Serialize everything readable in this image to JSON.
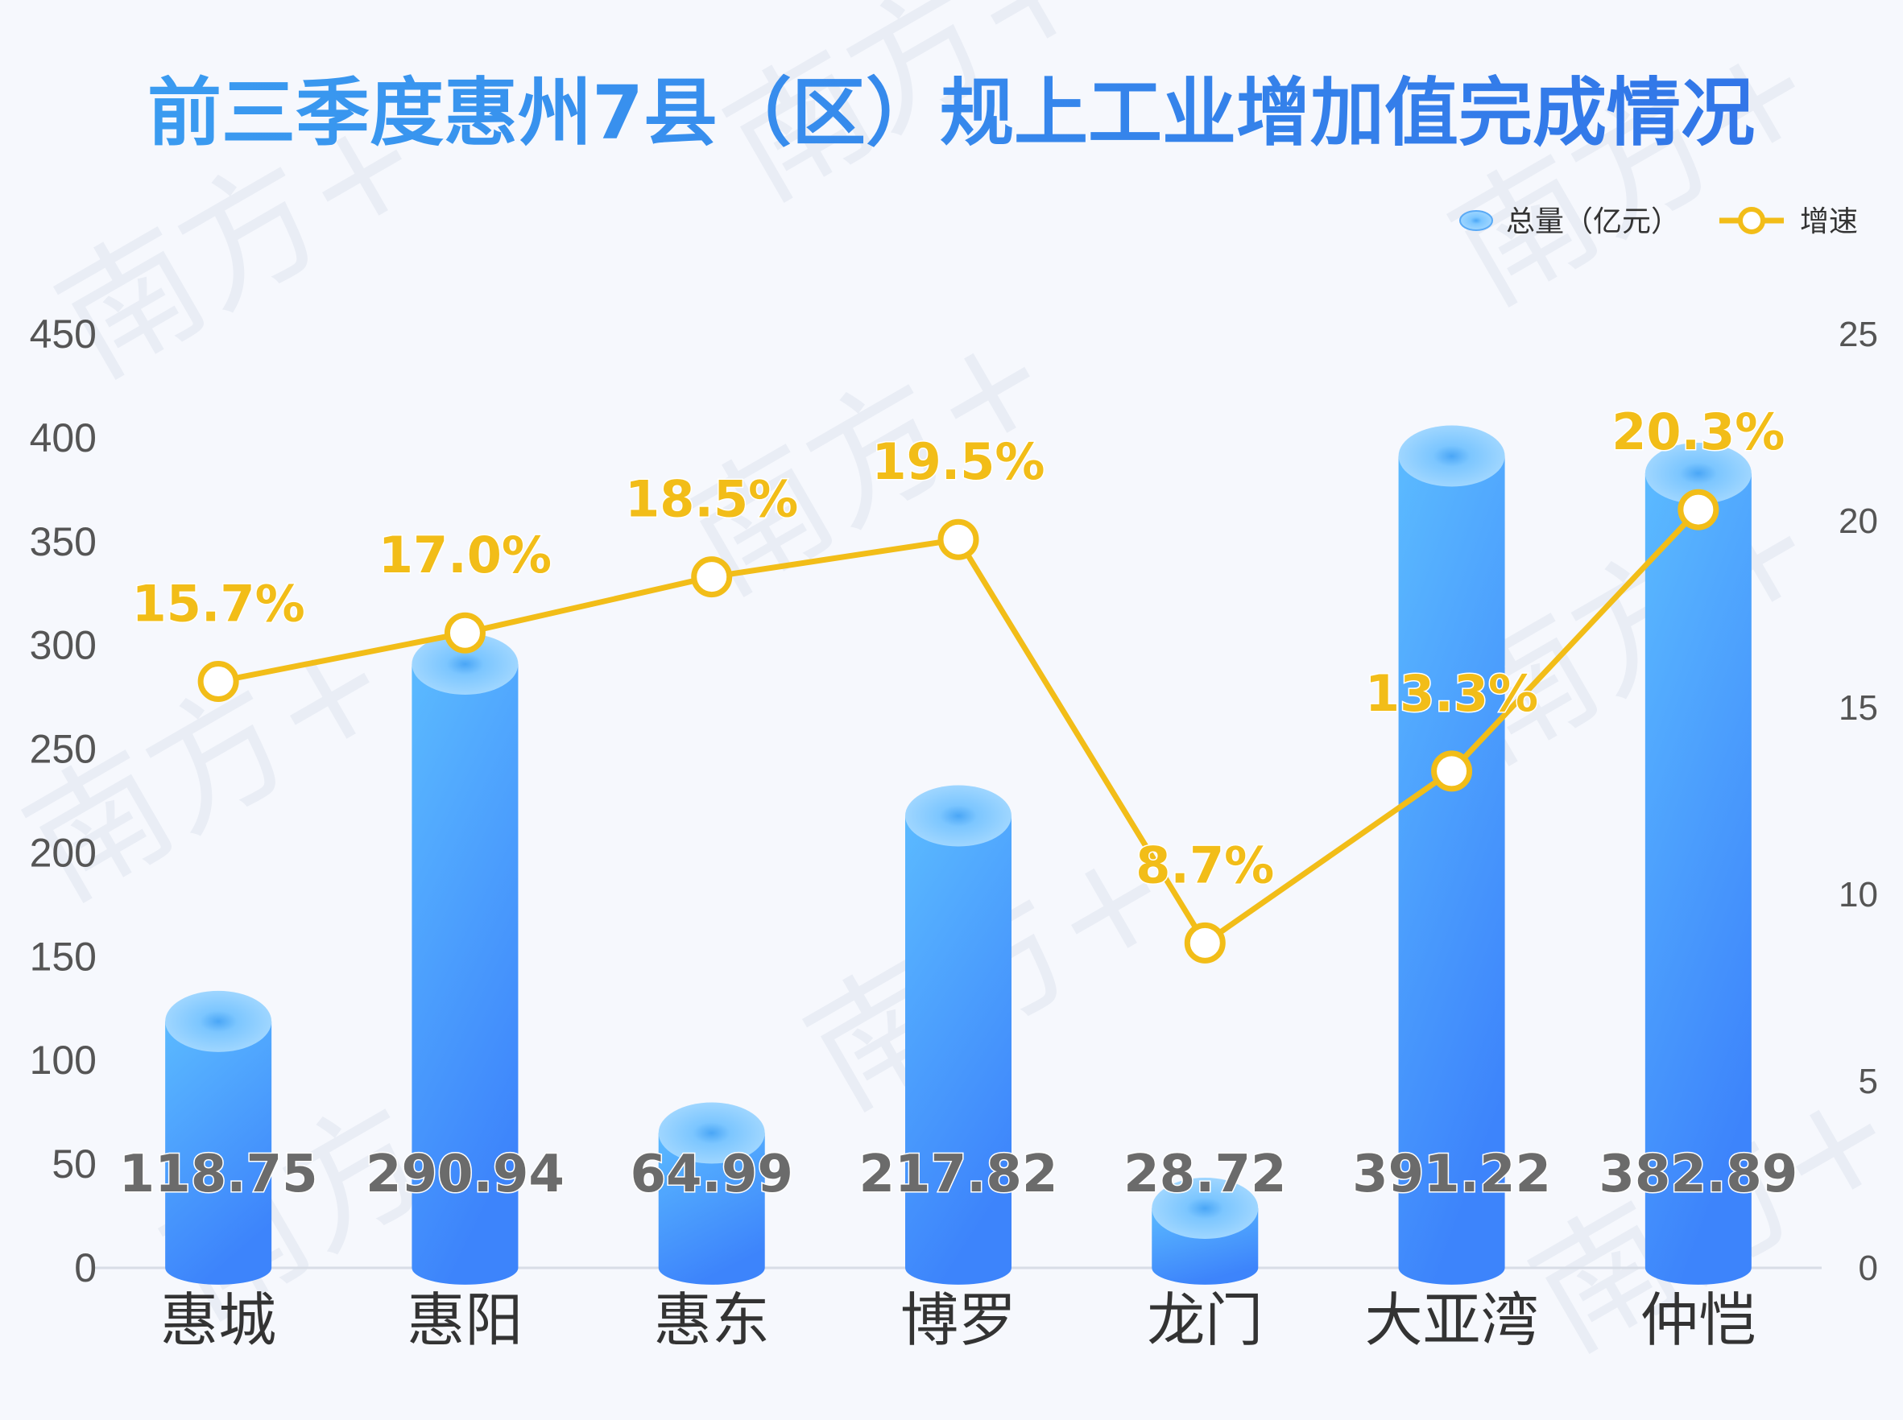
{
  "chart_data": {
    "type": "bar",
    "title": "前三季度惠州7县（区）规上工业增加值完成情况",
    "categories": [
      "惠城",
      "惠阳",
      "惠东",
      "博罗",
      "龙门",
      "大亚湾",
      "仲恺"
    ],
    "series": [
      {
        "name": "总量（亿元）",
        "type": "bar",
        "axis": "left",
        "values": [
          118.75,
          290.94,
          64.99,
          217.82,
          28.72,
          391.22,
          382.89
        ],
        "labels": [
          "118.75",
          "290.94",
          "64.99",
          "217.82",
          "28.72",
          "391.22",
          "382.89"
        ]
      },
      {
        "name": "增速",
        "type": "line",
        "axis": "right",
        "values": [
          15.7,
          17.0,
          18.5,
          19.5,
          8.7,
          13.3,
          20.3
        ],
        "labels": [
          "15.7%",
          "17.0%",
          "18.5%",
          "19.5%",
          "8.7%",
          "13.3%",
          "20.3%"
        ]
      }
    ],
    "y_left": {
      "min": 0,
      "max": 450,
      "ticks": [
        "0",
        "50",
        "100",
        "150",
        "200",
        "250",
        "300",
        "350",
        "400",
        "450"
      ]
    },
    "y_right": {
      "min": 0,
      "max": 25,
      "ticks": [
        "0",
        "5",
        "10",
        "15",
        "20",
        "25"
      ]
    },
    "grid": false,
    "legend_position": "top-right"
  },
  "watermark": "南方+",
  "colors": {
    "title_start": "#3a9bf0",
    "title_end": "#3276e8",
    "bar_top": "#5bbaff",
    "bar_bottom": "#3d84fb",
    "bar_cap": "#8fd0ff",
    "line": "#f2bd18",
    "background": "#f6f8fd"
  }
}
